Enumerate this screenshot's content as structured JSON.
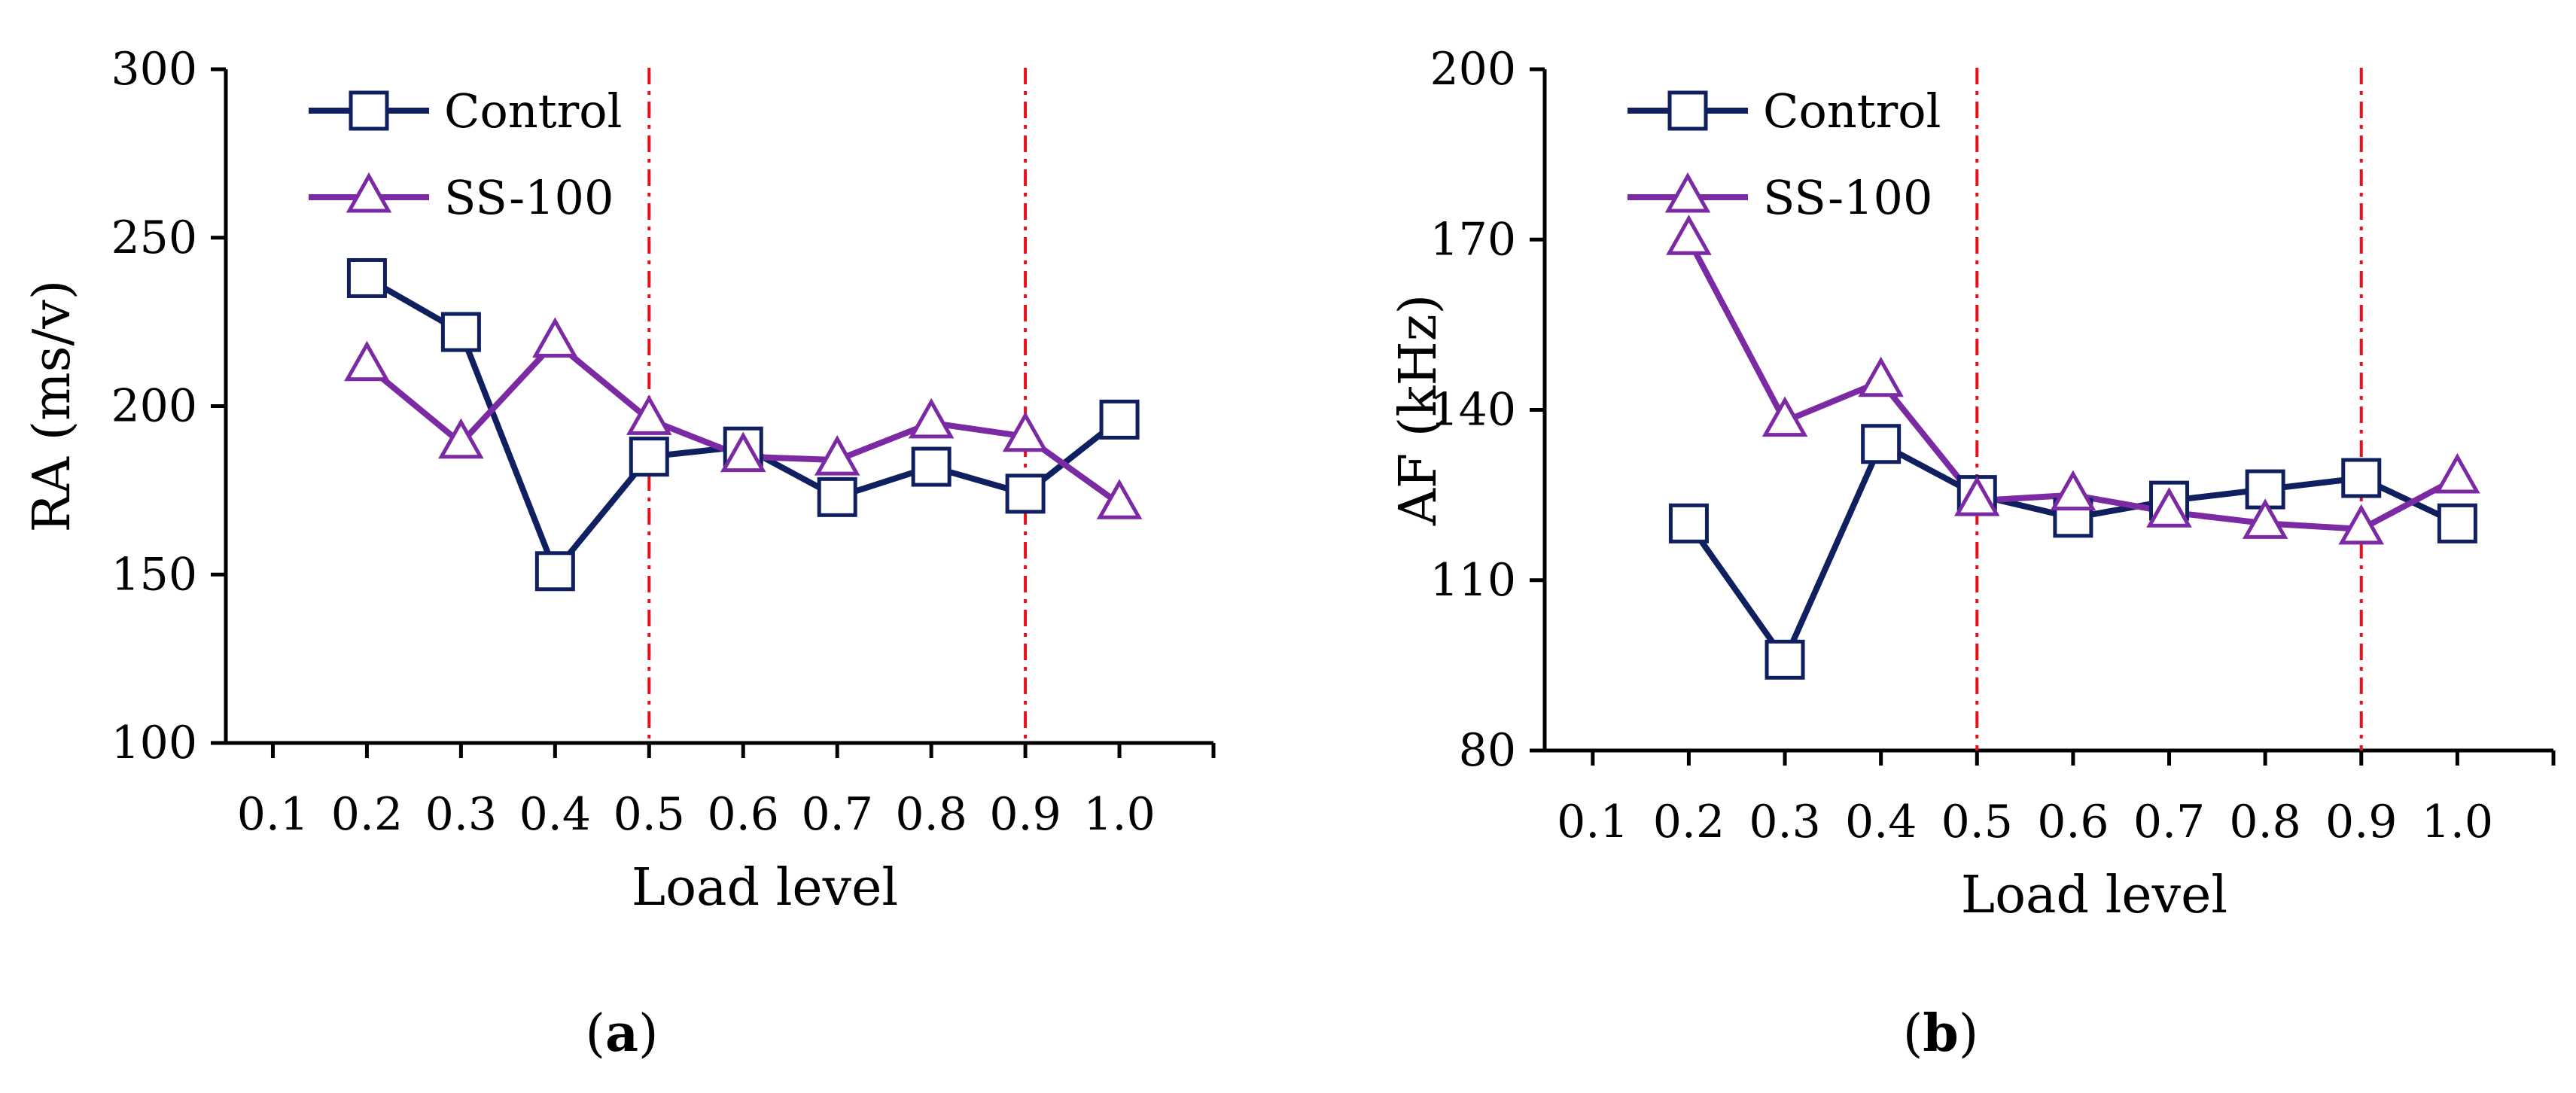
{
  "chart_data": [
    {
      "type": "line",
      "panel_label": "a",
      "xlabel": "Load level",
      "ylabel": "RA (ms/v)",
      "categories": [
        "0.1",
        "0.2",
        "0.3",
        "0.4",
        "0.5",
        "0.6",
        "0.7",
        "0.8",
        "0.9",
        "1.0"
      ],
      "yticks": [
        "100",
        "150",
        "200",
        "250",
        "300"
      ],
      "ylim": [
        100,
        300
      ],
      "legend_position": "top-left",
      "grid": false,
      "series": [
        {
          "name": "Control",
          "color": "#0f1f5f",
          "marker": "square",
          "values": [
            null,
            238,
            222,
            151,
            185,
            188,
            173,
            182,
            174,
            196
          ]
        },
        {
          "name": "SS-100",
          "color": "#7b2aa3",
          "marker": "triangle",
          "values": [
            null,
            212,
            189,
            219,
            196,
            185,
            184,
            195,
            191,
            171
          ]
        }
      ],
      "reference_lines_x": [
        0.5,
        0.9
      ],
      "reference_line_color": "#e8101a"
    },
    {
      "type": "line",
      "panel_label": "b",
      "xlabel": "Load level",
      "ylabel": "AF (kHz)",
      "categories": [
        "0.1",
        "0.2",
        "0.3",
        "0.4",
        "0.5",
        "0.6",
        "0.7",
        "0.8",
        "0.9",
        "1.0"
      ],
      "yticks": [
        "80",
        "110",
        "140",
        "170",
        "200"
      ],
      "ylim": [
        80,
        200
      ],
      "legend_position": "top-left",
      "grid": false,
      "series": [
        {
          "name": "Control",
          "color": "#0f1f5f",
          "marker": "square",
          "values": [
            null,
            120,
            96,
            134,
            125,
            121,
            124,
            126,
            128,
            120
          ]
        },
        {
          "name": "SS-100",
          "color": "#7b2aa3",
          "marker": "triangle",
          "values": [
            null,
            170,
            138,
            145,
            124,
            125,
            122,
            120,
            119,
            128
          ]
        }
      ],
      "reference_lines_x": [
        0.5,
        0.9
      ],
      "reference_line_color": "#e8101a"
    }
  ]
}
